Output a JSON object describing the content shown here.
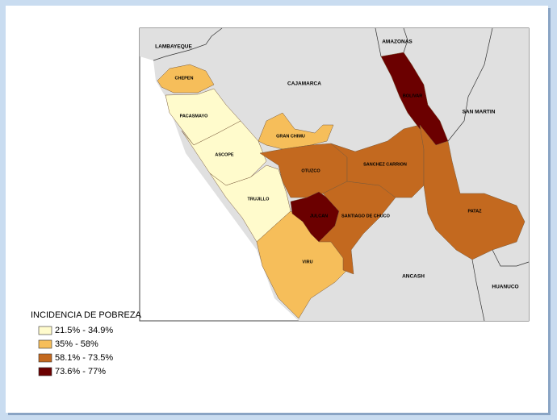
{
  "map": {
    "neighbors": [
      "LAMBAYEQUE",
      "CAJAMARCA",
      "AMAZONAS",
      "SAN MARTIN",
      "ANCASH",
      "HUANUCO"
    ],
    "provinces": [
      {
        "label": "CHEPEN",
        "color": "#f6be5a"
      },
      {
        "label": "PACASMAYO",
        "color": "#fffbcc"
      },
      {
        "label": "ASCOPE",
        "color": "#fffbcc"
      },
      {
        "label": "TRUJILLO",
        "color": "#fffbcc"
      },
      {
        "label": "GRAN CHIMU",
        "color": "#f6be5a"
      },
      {
        "label": "OTUZCO",
        "color": "#c3691f"
      },
      {
        "label": "VIRU",
        "color": "#f6be5a"
      },
      {
        "label": "JULCAN",
        "color": "#6b0000"
      },
      {
        "label": "SANTIAGO DE CHUCO",
        "color": "#c3691f"
      },
      {
        "label": "SANCHEZ CARRION",
        "color": "#c3691f"
      },
      {
        "label": "BOLIVAR",
        "color": "#6b0000"
      },
      {
        "label": "PATAZ",
        "color": "#c3691f"
      }
    ]
  },
  "legend": {
    "title": "INCIDENCIA DE POBREZA",
    "items": [
      {
        "label": "21.5% - 34.9%",
        "color": "#fffbcc"
      },
      {
        "label": "35% - 58%",
        "color": "#f6be5a"
      },
      {
        "label": "58.1% - 73.5%",
        "color": "#c3691f"
      },
      {
        "label": "73.6% - 77%",
        "color": "#6b0000"
      }
    ]
  }
}
